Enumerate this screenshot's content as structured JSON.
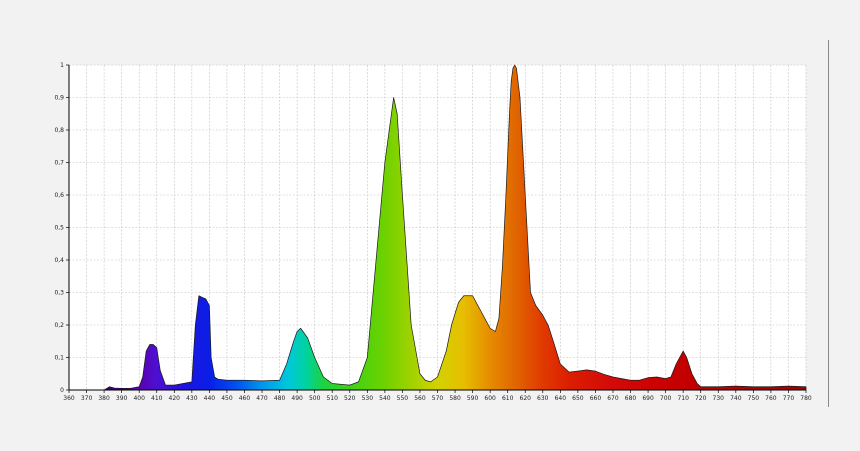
{
  "chart_data": {
    "type": "area",
    "title": "",
    "xlabel": "",
    "ylabel": "",
    "xlim": [
      360,
      780
    ],
    "ylim": [
      0,
      1
    ],
    "grid": true,
    "legend": "none",
    "x_ticks": [
      "360",
      "370",
      "380",
      "390",
      "400",
      "410",
      "420",
      "430",
      "440",
      "450",
      "460",
      "470",
      "480",
      "490",
      "500",
      "510",
      "520",
      "530",
      "540",
      "550",
      "560",
      "570",
      "580",
      "590",
      "600",
      "610",
      "620",
      "630",
      "640",
      "650",
      "660",
      "670",
      "680",
      "690",
      "700",
      "710",
      "720",
      "730",
      "740",
      "750",
      "760",
      "770",
      "780"
    ],
    "y_ticks": [
      "0",
      "0,1",
      "0,2",
      "0,3",
      "0,4",
      "0,5",
      "0,6",
      "0,7",
      "0,8",
      "0,9",
      "1"
    ],
    "series": [
      {
        "x": [
          360,
          380,
          383,
          386,
          390,
          395,
          400,
          402,
          404,
          406,
          408,
          410,
          412,
          415,
          420,
          425,
          430,
          432,
          434,
          436,
          438,
          440,
          441,
          443,
          445,
          450,
          460,
          470,
          480,
          484,
          488,
          490,
          492,
          496,
          500,
          505,
          510,
          520,
          525,
          530,
          535,
          540,
          543,
          545,
          547,
          550,
          555,
          560,
          563,
          566,
          570,
          575,
          578,
          582,
          585,
          590,
          593,
          597,
          600,
          603,
          605,
          607,
          609,
          611,
          612,
          613,
          614,
          615,
          617,
          620,
          623,
          626,
          630,
          633,
          636,
          640,
          645,
          650,
          655,
          660,
          665,
          670,
          675,
          680,
          685,
          690,
          695,
          700,
          703,
          706,
          708,
          710,
          712,
          715,
          718,
          720,
          730,
          740,
          750,
          760,
          770,
          780
        ],
        "y": [
          0,
          0,
          0.01,
          0.006,
          0.005,
          0.005,
          0.01,
          0.04,
          0.12,
          0.14,
          0.14,
          0.13,
          0.06,
          0.015,
          0.015,
          0.02,
          0.025,
          0.2,
          0.29,
          0.285,
          0.28,
          0.26,
          0.1,
          0.04,
          0.033,
          0.03,
          0.03,
          0.028,
          0.03,
          0.08,
          0.15,
          0.18,
          0.19,
          0.16,
          0.1,
          0.04,
          0.02,
          0.015,
          0.025,
          0.1,
          0.4,
          0.7,
          0.82,
          0.9,
          0.85,
          0.6,
          0.2,
          0.05,
          0.03,
          0.025,
          0.04,
          0.12,
          0.2,
          0.27,
          0.29,
          0.29,
          0.26,
          0.22,
          0.19,
          0.18,
          0.22,
          0.38,
          0.6,
          0.85,
          0.95,
          0.99,
          1.0,
          0.99,
          0.9,
          0.6,
          0.3,
          0.26,
          0.23,
          0.2,
          0.15,
          0.08,
          0.055,
          0.058,
          0.062,
          0.058,
          0.048,
          0.04,
          0.035,
          0.03,
          0.03,
          0.038,
          0.04,
          0.035,
          0.04,
          0.08,
          0.1,
          0.12,
          0.1,
          0.05,
          0.02,
          0.01,
          0.01,
          0.012,
          0.01,
          0.01,
          0.012,
          0.01
        ]
      }
    ]
  }
}
